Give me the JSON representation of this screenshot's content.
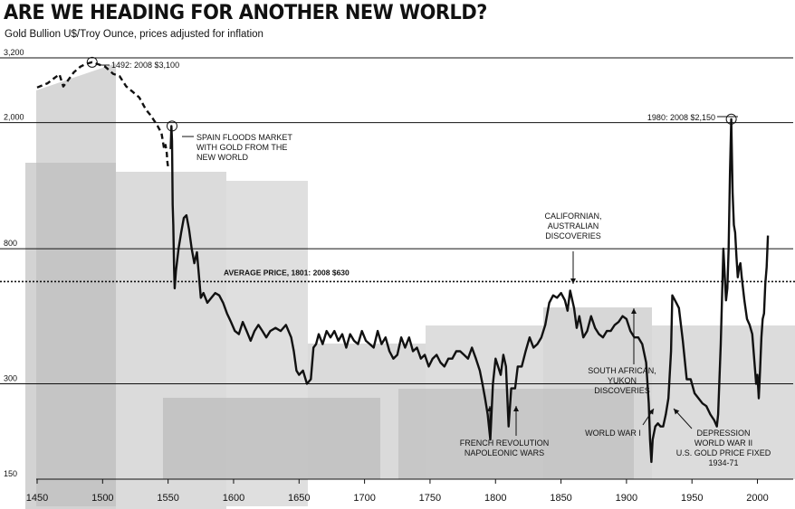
{
  "title": "ARE WE HEADING FOR ANOTHER NEW WORLD?",
  "subtitle": "Gold Bullion U$/Troy Ounce, prices adjusted for inflation",
  "colors": {
    "line": "#111111",
    "background_bars": "#d9d9d9",
    "grid": "#111111"
  },
  "chart_data": {
    "type": "line",
    "title": "ARE WE HEADING FOR ANOTHER NEW WORLD?",
    "subtitle": "Gold Bullion U$/Troy Ounce, prices adjusted for inflation",
    "xlabel": "",
    "ylabel": "",
    "xlim": [
      1450,
      2010
    ],
    "y_scale": "log",
    "ylim": [
      150,
      3200
    ],
    "x_ticks": [
      "1450",
      "1500",
      "1550",
      "1600",
      "1650",
      "1700",
      "1750",
      "1800",
      "1850",
      "1900",
      "1950",
      "2000"
    ],
    "y_ticks": [
      "3,200",
      "2,000",
      "800",
      "300",
      "150"
    ],
    "reference_line": {
      "label": "AVERAGE PRICE, 1801: 2008 $630",
      "value": 630,
      "style": "dotted"
    },
    "series": [
      {
        "style": "dashed",
        "points": [
          [
            1450,
            2580
          ],
          [
            1458,
            2660
          ],
          [
            1463,
            2760
          ],
          [
            1467,
            2840
          ],
          [
            1470,
            2600
          ],
          [
            1473,
            2700
          ],
          [
            1478,
            2880
          ],
          [
            1483,
            3000
          ],
          [
            1487,
            3060
          ],
          [
            1492,
            3100
          ],
          [
            1497,
            3050
          ],
          [
            1502,
            3000
          ],
          [
            1508,
            2850
          ],
          [
            1513,
            2800
          ],
          [
            1518,
            2600
          ],
          [
            1523,
            2500
          ],
          [
            1528,
            2400
          ],
          [
            1533,
            2200
          ],
          [
            1537,
            2100
          ],
          [
            1542,
            1950
          ],
          [
            1545,
            1850
          ],
          [
            1547,
            1650
          ],
          [
            1548,
            1700
          ],
          [
            1549,
            1600
          ],
          [
            1549.5,
            1500
          ],
          [
            1550,
            1450
          ]
        ]
      },
      {
        "style": "solid",
        "points": [
          [
            1552,
            1650
          ],
          [
            1552.5,
            1950
          ],
          [
            1553,
            1750
          ],
          [
            1553.5,
            1100
          ],
          [
            1554,
            950
          ],
          [
            1554.5,
            700
          ],
          [
            1555,
            600
          ],
          [
            1556,
            680
          ],
          [
            1558,
            800
          ],
          [
            1560,
            900
          ],
          [
            1562,
            1000
          ],
          [
            1564,
            1020
          ],
          [
            1566,
            920
          ],
          [
            1568,
            800
          ],
          [
            1570,
            720
          ],
          [
            1572,
            780
          ],
          [
            1573,
            700
          ],
          [
            1575,
            560
          ],
          [
            1577,
            580
          ],
          [
            1580,
            540
          ],
          [
            1583,
            560
          ],
          [
            1586,
            580
          ],
          [
            1589,
            570
          ],
          [
            1592,
            540
          ],
          [
            1595,
            500
          ],
          [
            1598,
            470
          ],
          [
            1601,
            440
          ],
          [
            1604,
            430
          ],
          [
            1607,
            470
          ],
          [
            1610,
            440
          ],
          [
            1613,
            410
          ],
          [
            1616,
            440
          ],
          [
            1619,
            460
          ],
          [
            1622,
            440
          ],
          [
            1625,
            420
          ],
          [
            1628,
            440
          ],
          [
            1632,
            450
          ],
          [
            1636,
            440
          ],
          [
            1640,
            460
          ],
          [
            1644,
            420
          ],
          [
            1646,
            380
          ],
          [
            1648,
            330
          ],
          [
            1650,
            320
          ],
          [
            1653,
            330
          ],
          [
            1656,
            300
          ],
          [
            1659,
            310
          ],
          [
            1661,
            390
          ],
          [
            1663,
            400
          ],
          [
            1665,
            430
          ],
          [
            1668,
            400
          ],
          [
            1671,
            440
          ],
          [
            1674,
            420
          ],
          [
            1677,
            440
          ],
          [
            1680,
            410
          ],
          [
            1683,
            430
          ],
          [
            1686,
            390
          ],
          [
            1689,
            430
          ],
          [
            1692,
            410
          ],
          [
            1695,
            400
          ],
          [
            1698,
            440
          ],
          [
            1701,
            410
          ],
          [
            1704,
            400
          ],
          [
            1707,
            390
          ],
          [
            1710,
            440
          ],
          [
            1713,
            400
          ],
          [
            1716,
            420
          ],
          [
            1719,
            380
          ],
          [
            1722,
            360
          ],
          [
            1725,
            370
          ],
          [
            1728,
            420
          ],
          [
            1731,
            390
          ],
          [
            1734,
            420
          ],
          [
            1737,
            380
          ],
          [
            1740,
            390
          ],
          [
            1743,
            360
          ],
          [
            1746,
            370
          ],
          [
            1749,
            340
          ],
          [
            1752,
            360
          ],
          [
            1755,
            370
          ],
          [
            1758,
            350
          ],
          [
            1761,
            340
          ],
          [
            1764,
            360
          ],
          [
            1767,
            360
          ],
          [
            1770,
            380
          ],
          [
            1773,
            380
          ],
          [
            1776,
            370
          ],
          [
            1779,
            360
          ],
          [
            1782,
            390
          ],
          [
            1785,
            360
          ],
          [
            1788,
            330
          ],
          [
            1790,
            300
          ],
          [
            1792,
            270
          ],
          [
            1794,
            240
          ],
          [
            1796,
            200
          ],
          [
            1798,
            300
          ],
          [
            1800,
            360
          ],
          [
            1802,
            340
          ],
          [
            1804,
            320
          ],
          [
            1806,
            370
          ],
          [
            1808,
            340
          ],
          [
            1810,
            220
          ],
          [
            1812,
            290
          ],
          [
            1815,
            290
          ],
          [
            1817,
            340
          ],
          [
            1820,
            340
          ],
          [
            1823,
            380
          ],
          [
            1826,
            420
          ],
          [
            1829,
            390
          ],
          [
            1832,
            400
          ],
          [
            1835,
            420
          ],
          [
            1838,
            460
          ],
          [
            1841,
            540
          ],
          [
            1844,
            570
          ],
          [
            1847,
            560
          ],
          [
            1850,
            580
          ],
          [
            1853,
            550
          ],
          [
            1855,
            510
          ],
          [
            1857,
            590
          ],
          [
            1860,
            520
          ],
          [
            1862,
            450
          ],
          [
            1864,
            490
          ],
          [
            1867,
            420
          ],
          [
            1870,
            440
          ],
          [
            1873,
            490
          ],
          [
            1876,
            450
          ],
          [
            1879,
            430
          ],
          [
            1882,
            420
          ],
          [
            1885,
            440
          ],
          [
            1888,
            440
          ],
          [
            1891,
            460
          ],
          [
            1894,
            470
          ],
          [
            1897,
            490
          ],
          [
            1900,
            480
          ],
          [
            1903,
            440
          ],
          [
            1906,
            420
          ],
          [
            1909,
            420
          ],
          [
            1912,
            400
          ],
          [
            1915,
            350
          ],
          [
            1917,
            260
          ],
          [
            1918,
            200
          ],
          [
            1919,
            170
          ],
          [
            1920,
            200
          ],
          [
            1922,
            220
          ],
          [
            1924,
            225
          ],
          [
            1926,
            220
          ],
          [
            1928,
            220
          ],
          [
            1930,
            240
          ],
          [
            1932,
            270
          ],
          [
            1934,
            380
          ],
          [
            1935,
            570
          ],
          [
            1936,
            560
          ],
          [
            1938,
            540
          ],
          [
            1940,
            520
          ],
          [
            1943,
            410
          ],
          [
            1946,
            310
          ],
          [
            1949,
            310
          ],
          [
            1952,
            280
          ],
          [
            1955,
            270
          ],
          [
            1958,
            260
          ],
          [
            1961,
            255
          ],
          [
            1964,
            240
          ],
          [
            1967,
            230
          ],
          [
            1969,
            220
          ],
          [
            1970,
            240
          ],
          [
            1972,
            400
          ],
          [
            1974,
            800
          ],
          [
            1976,
            550
          ],
          [
            1977,
            600
          ],
          [
            1978,
            800
          ],
          [
            1979,
            1400
          ],
          [
            1980,
            2050
          ],
          [
            1981,
            1200
          ],
          [
            1982,
            950
          ],
          [
            1983,
            900
          ],
          [
            1984,
            750
          ],
          [
            1985,
            650
          ],
          [
            1986,
            700
          ],
          [
            1987,
            720
          ],
          [
            1988,
            650
          ],
          [
            1990,
            550
          ],
          [
            1992,
            480
          ],
          [
            1994,
            460
          ],
          [
            1996,
            430
          ],
          [
            1998,
            340
          ],
          [
            1999,
            300
          ],
          [
            2000,
            320
          ],
          [
            2001,
            270
          ],
          [
            2002,
            330
          ],
          [
            2003,
            420
          ],
          [
            2004,
            480
          ],
          [
            2005,
            500
          ],
          [
            2006,
            620
          ],
          [
            2007,
            700
          ],
          [
            2008,
            880
          ]
        ]
      }
    ],
    "annotations": [
      {
        "text": "1492: 2008 $3,100",
        "x": 1492,
        "y": 3100,
        "circle": true
      },
      {
        "text": "SPAIN FLOODS MARKET|WITH GOLD FROM THE|NEW WORLD",
        "x": 1553,
        "y": 1950,
        "circle": true
      },
      {
        "text": "1980: 2008 $2,150",
        "x": 1980,
        "y": 2050,
        "circle": true
      },
      {
        "text": "CALIFORNIAN,|AUSTRALIAN|DISCOVERIES",
        "x": 1850,
        "y": 580
      },
      {
        "text": "SOUTH AFRICAN,|YUKON|DISCOVERIES",
        "x": 1897,
        "y": 490
      },
      {
        "text": "FRENCH REVOLUTION|NAPOLEONIC WARS",
        "x": 1800,
        "y": 200
      },
      {
        "text": "WORLD WAR I",
        "x": 1919,
        "y": 170
      },
      {
        "text": "DEPRESSION|WORLD WAR II|U.S. GOLD PRICE FIXED|1934-71",
        "x": 1926,
        "y": 220
      }
    ]
  }
}
